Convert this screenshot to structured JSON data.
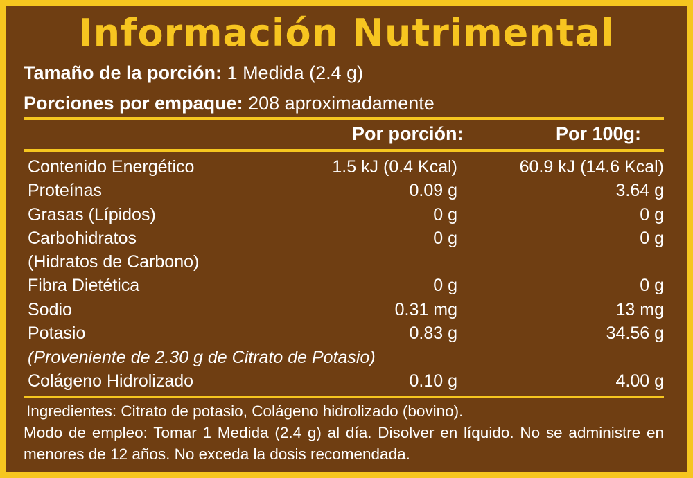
{
  "title": "Información Nutrimental",
  "serving": {
    "size_label": "Tamaño de la porción:",
    "size_value": "1 Medida (2.4 g)",
    "count_label": "Porciones por empaque:",
    "count_value": "208 aproximadamente"
  },
  "columns": {
    "per_serving": "Por porción:",
    "per_100g": "Por 100g:"
  },
  "rows": [
    {
      "label": "Contenido Energético",
      "per_serving": "1.5 kJ (0.4 Kcal)",
      "per_100g": "60.9 kJ (14.6 Kcal)"
    },
    {
      "label": "Proteínas",
      "per_serving": "0.09 g",
      "per_100g": "3.64 g"
    },
    {
      "label": "Grasas (Lípidos)",
      "per_serving": "0 g",
      "per_100g": "0 g"
    },
    {
      "label": "Carbohidratos",
      "per_serving": "0 g",
      "per_100g": "0 g"
    },
    {
      "label": "(Hidratos de Carbono)"
    },
    {
      "label": "Fibra Dietética",
      "per_serving": "0 g",
      "per_100g": "0 g"
    },
    {
      "label": "Sodio",
      "per_serving": "0.31 mg",
      "per_100g": "13 mg"
    },
    {
      "label": "Potasio",
      "per_serving": "0.83 g",
      "per_100g": "34.56 g"
    },
    {
      "label": "Colágeno Hidrolizado",
      "per_serving": "0.10 g",
      "per_100g": "4.00 g"
    }
  ],
  "potassium_note": "(Proveniente de 2.30 g de Citrato de Potasio)",
  "ingredients": "Ingredientes: Citrato de potasio, Colágeno hidrolizado (bovino).",
  "usage": "Modo de empleo: Tomar 1 Medida (2.4 g) al día. Disolver en líquido. No se administre en menores de 12 años. No exceda la dosis recomendada.",
  "colors": {
    "background": "#6f3e12",
    "accent": "#f6c61f",
    "text": "#ffffff"
  }
}
